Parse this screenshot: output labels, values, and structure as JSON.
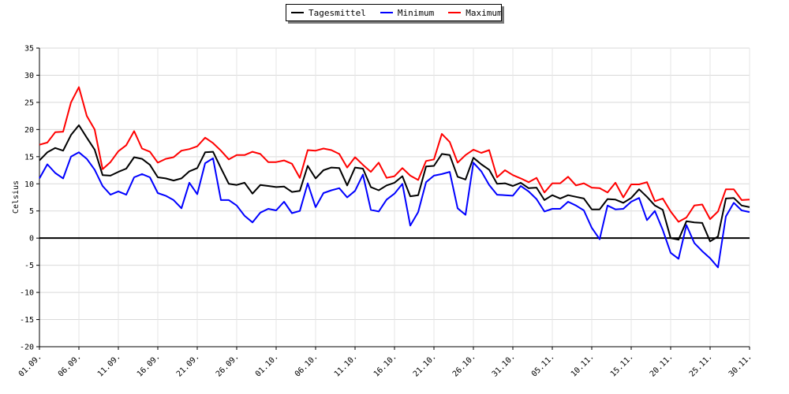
{
  "chart_data": {
    "type": "line",
    "title": "",
    "ylabel": "Celsius",
    "xlabel": "",
    "ylim": [
      -20,
      35
    ],
    "yticks": [
      -20,
      -15,
      -10,
      -5,
      0,
      5,
      10,
      15,
      20,
      25,
      30,
      35
    ],
    "xtick_labels": [
      "01.09.",
      "06.09.",
      "11.09.",
      "16.09.",
      "21.09.",
      "26.09.",
      "01.10.",
      "06.10.",
      "11.10.",
      "16.10.",
      "21.10.",
      "26.10.",
      "31.10.",
      "05.11.",
      "10.11.",
      "15.11.",
      "20.11.",
      "25.11.",
      "30.11."
    ],
    "grid": true,
    "legend_position": "top-center",
    "series": [
      {
        "name": "Tagesmittel",
        "color": "#000000",
        "values": [
          14.3,
          15.8,
          16.6,
          16.1,
          19.0,
          20.8,
          18.5,
          16.3,
          11.6,
          11.5,
          12.2,
          12.8,
          14.9,
          14.6,
          13.5,
          11.2,
          11.0,
          10.6,
          11.0,
          12.3,
          12.9,
          15.8,
          15.9,
          12.9,
          10.0,
          9.8,
          10.2,
          8.2,
          9.8,
          9.6,
          9.4,
          9.5,
          8.5,
          8.7,
          13.3,
          11.0,
          12.5,
          13.0,
          12.9,
          9.7,
          13.0,
          12.8,
          9.4,
          8.8,
          9.7,
          10.2,
          11.4,
          7.7,
          7.9,
          13.2,
          13.3,
          15.5,
          15.3,
          11.3,
          10.8,
          14.8,
          13.6,
          12.6,
          10.0,
          10.1,
          9.6,
          10.2,
          9.2,
          9.3,
          7.0,
          7.9,
          7.3,
          7.9,
          7.6,
          7.3,
          5.3,
          5.3,
          7.2,
          7.1,
          6.5,
          7.4,
          9.0,
          7.6,
          6.0,
          5.2,
          0.0,
          -0.3,
          3.1,
          2.9,
          2.8,
          -0.6,
          0.3,
          7.3,
          7.4,
          6.0,
          5.7
        ]
      },
      {
        "name": "Minimum",
        "color": "#0000ff",
        "values": [
          11.0,
          13.6,
          12.0,
          11.0,
          15.0,
          15.8,
          14.6,
          12.6,
          9.6,
          8.0,
          8.6,
          8.0,
          11.2,
          11.8,
          11.2,
          8.3,
          7.8,
          7.0,
          5.5,
          10.2,
          8.1,
          13.8,
          14.7,
          7.0,
          7.0,
          6.0,
          4.1,
          2.9,
          4.7,
          5.4,
          5.1,
          6.7,
          4.6,
          5.0,
          10.1,
          5.7,
          8.3,
          8.8,
          9.2,
          7.5,
          8.7,
          11.7,
          5.2,
          4.9,
          7.1,
          8.2,
          10.0,
          2.3,
          4.8,
          10.3,
          11.5,
          11.8,
          12.2,
          5.5,
          4.3,
          13.9,
          12.3,
          9.8,
          8.0,
          7.9,
          7.8,
          9.6,
          8.6,
          7.2,
          4.9,
          5.4,
          5.4,
          6.7,
          6.0,
          5.1,
          1.9,
          -0.2,
          6.0,
          5.3,
          5.4,
          6.7,
          7.4,
          3.3,
          5.0,
          1.5,
          -2.7,
          -3.8,
          2.4,
          -0.9,
          -2.4,
          -3.7,
          -5.4,
          4.0,
          6.5,
          5.1,
          4.8
        ]
      },
      {
        "name": "Maximum",
        "color": "#ff0000",
        "values": [
          17.2,
          17.6,
          19.5,
          19.6,
          25.0,
          27.8,
          22.5,
          20.0,
          12.7,
          14.0,
          16.0,
          17.1,
          19.7,
          16.5,
          15.9,
          13.9,
          14.6,
          14.9,
          16.1,
          16.4,
          16.9,
          18.5,
          17.5,
          16.1,
          14.5,
          15.3,
          15.3,
          15.9,
          15.5,
          14.0,
          14.0,
          14.3,
          13.7,
          11.1,
          16.2,
          16.1,
          16.5,
          16.2,
          15.5,
          13.0,
          14.9,
          13.5,
          12.2,
          13.9,
          11.1,
          11.4,
          12.9,
          11.5,
          10.7,
          14.2,
          14.5,
          19.2,
          17.7,
          13.9,
          15.3,
          16.3,
          15.7,
          16.2,
          11.2,
          12.5,
          11.6,
          11.0,
          10.3,
          11.1,
          8.4,
          10.1,
          10.1,
          11.3,
          9.7,
          10.1,
          9.3,
          9.2,
          8.4,
          10.2,
          7.5,
          9.9,
          9.9,
          10.3,
          6.8,
          7.3,
          4.9,
          3.0,
          3.8,
          6.0,
          6.2,
          3.5,
          4.9,
          9.0,
          9.0,
          7.0,
          7.1
        ]
      }
    ]
  }
}
